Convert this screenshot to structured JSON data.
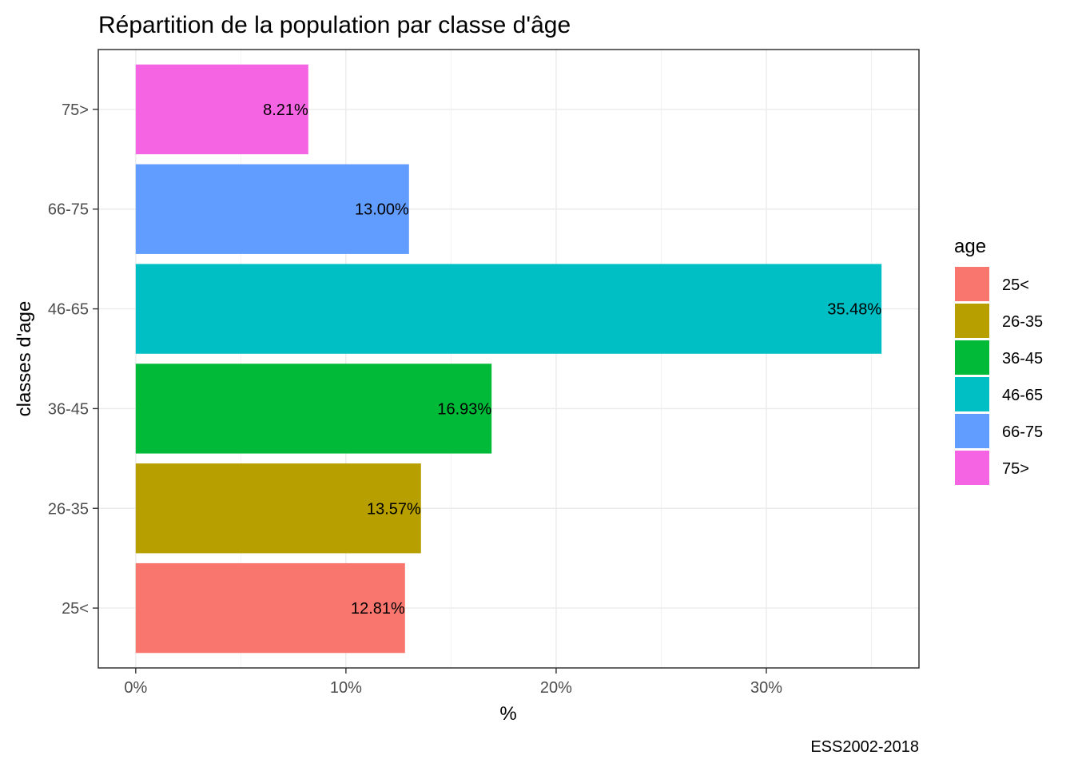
{
  "chart_data": {
    "type": "bar",
    "orientation": "horizontal",
    "title": "Répartition de la population par classe d'âge",
    "xlabel": "%",
    "ylabel": "classes d'age",
    "caption": "ESS2002-2018",
    "categories": [
      "25<",
      "26-35",
      "36-45",
      "46-65",
      "66-75",
      "75>"
    ],
    "values": [
      12.81,
      13.57,
      16.93,
      35.48,
      13.0,
      8.21
    ],
    "value_labels": [
      "12.81%",
      "13.57%",
      "16.93%",
      "35.48%",
      "13.00%",
      "8.21%"
    ],
    "colors": [
      "#F8766D",
      "#B79F00",
      "#00BA38",
      "#00BFC4",
      "#619CFF",
      "#F564E3"
    ],
    "xlim": [
      -1.78,
      37.26
    ],
    "xticks": [
      0,
      10,
      20,
      30
    ],
    "xtick_labels": [
      "0%",
      "10%",
      "20%",
      "30%"
    ],
    "grid": true,
    "legend": {
      "title": "age",
      "position": "right",
      "entries": [
        "25<",
        "26-35",
        "36-45",
        "46-65",
        "66-75",
        "75>"
      ]
    }
  }
}
